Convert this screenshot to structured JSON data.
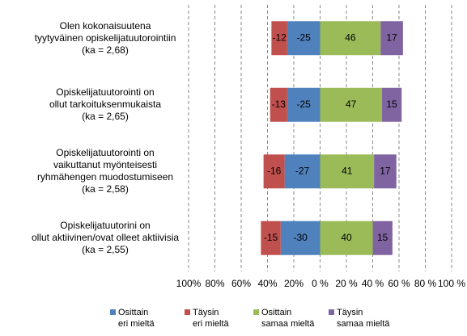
{
  "chart_data": {
    "type": "diverging-bar",
    "categories": [
      "Olen kokonaisuutena\ntyytyväinen opiskelijatuutorointiin\n(ka = 2,68)",
      "Opiskelijatuutorointi on\nollut tarkoituksenmukaista\n(ka = 2,65)",
      "Opiskelijatuutorointi on\nvaikuttanut myönteisesti\nryhmähengen muodostumiseen\n(ka = 2,58)",
      "Opiskelijatuutorini on\nollut aktiivinen/ovat olleet aktiivisia\n(ka = 2,55)"
    ],
    "series": [
      {
        "name": "Osittain\neri mieltä",
        "color": "#4f81bd",
        "values": [
          -25,
          -25,
          -27,
          -30
        ]
      },
      {
        "name": "Täysin\neri mieltä",
        "color": "#c0504d",
        "values": [
          -12,
          -13,
          -16,
          -15
        ]
      },
      {
        "name": "Osittain\nsamaa mieltä",
        "color": "#9bbb59",
        "values": [
          46,
          47,
          41,
          40
        ]
      },
      {
        "name": "Täysin\nsamaa mieltä",
        "color": "#8064a2",
        "values": [
          17,
          15,
          17,
          15
        ]
      }
    ],
    "xlim": [
      -100,
      100
    ],
    "xticks": [
      {
        "value": -100,
        "label": "100%"
      },
      {
        "value": -80,
        "label": "80%"
      },
      {
        "value": -60,
        "label": "60%"
      },
      {
        "value": -40,
        "label": "40%"
      },
      {
        "value": -20,
        "label": "20%"
      },
      {
        "value": 0,
        "label": "0 %"
      },
      {
        "value": 20,
        "label": "20 %"
      },
      {
        "value": 40,
        "label": "40 %"
      },
      {
        "value": 60,
        "label": "60 %"
      },
      {
        "value": 80,
        "label": "80 %"
      },
      {
        "value": 100,
        "label": "100 %"
      }
    ],
    "grid": true
  }
}
